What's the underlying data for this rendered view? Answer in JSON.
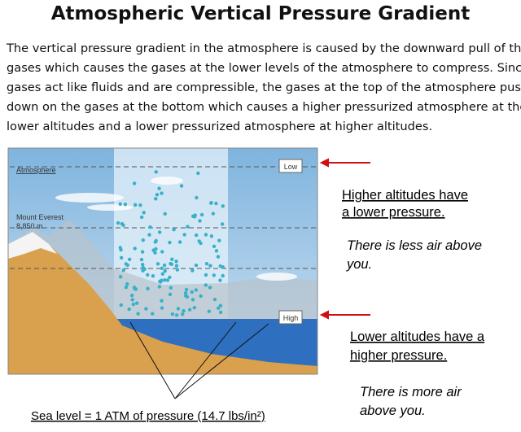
{
  "header": {
    "title": "Atmospheric Vertical Pressure Gradient"
  },
  "paragraph": {
    "lines": [
      "The vertical pressure gradient in the atmosphere is caused by the downward pull of the",
      "gases which causes the gases at the lower levels of the atmosphere to compress. Since",
      "gases act like fluids and are compressible, the gases at the top of the atmosphere push",
      "down on the gases at the bottom which causes a higher pressurized atmosphere at the",
      "lower altitudes and a lower pressurized atmosphere at higher altitudes."
    ]
  },
  "diagram": {
    "atmosphere": "Atmosphere",
    "mountain": "Mount Everest",
    "height": "8,850 m",
    "low": "Low",
    "high": "High",
    "caption": "Sea level = 1 ATM of pressure (14.7 lbs/in²)"
  },
  "notes": {
    "higher": [
      "Higher altitudes have",
      "a lower pressure."
    ],
    "less_air": [
      "There is less air above",
      "you."
    ],
    "lower": [
      "Lower altitudes have a",
      "higher pressure."
    ],
    "more_air": [
      "There is more air",
      "above you."
    ]
  }
}
